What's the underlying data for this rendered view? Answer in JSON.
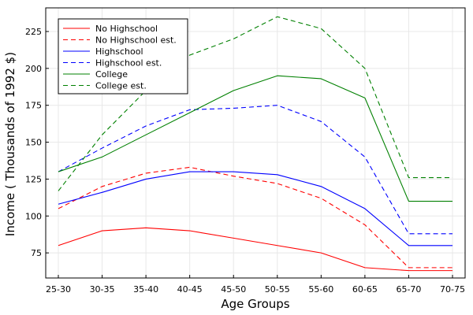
{
  "chart_data": {
    "type": "line",
    "title": "",
    "xlabel": "Age Groups",
    "ylabel": "Income ( Thousands of 1992 $)",
    "categories": [
      "25-30",
      "30-35",
      "35-40",
      "40-45",
      "45-50",
      "50-55",
      "55-60",
      "60-65",
      "65-70",
      "70-75"
    ],
    "ylim": [
      58,
      241
    ],
    "yticks": [
      75,
      100,
      125,
      150,
      175,
      200,
      225
    ],
    "grid": true,
    "legend_position": "top-left",
    "series": [
      {
        "name": "No Highschool",
        "color": "#ff0000",
        "dash": "solid",
        "values": [
          80,
          90,
          92,
          90,
          85,
          80,
          75,
          65,
          63,
          63
        ]
      },
      {
        "name": "No Highschool est.",
        "color": "#ff0000",
        "dash": "dashed",
        "values": [
          105,
          120,
          129,
          133,
          127,
          122,
          112,
          94,
          65,
          65
        ]
      },
      {
        "name": "Highschool",
        "color": "#0000ff",
        "dash": "solid",
        "values": [
          108,
          116,
          125,
          130,
          130,
          128,
          120,
          105,
          80,
          80
        ]
      },
      {
        "name": "Highschool est.",
        "color": "#0000ff",
        "dash": "dashed",
        "values": [
          130,
          146,
          161,
          172,
          173,
          175,
          164,
          140,
          88,
          88
        ]
      },
      {
        "name": "College",
        "color": "#008000",
        "dash": "solid",
        "values": [
          130,
          140,
          155,
          170,
          185,
          195,
          193,
          180,
          110,
          110
        ]
      },
      {
        "name": "College est.",
        "color": "#008000",
        "dash": "dashed",
        "values": [
          117,
          155,
          185,
          209,
          220,
          235,
          227,
          200,
          126,
          126
        ]
      }
    ]
  }
}
